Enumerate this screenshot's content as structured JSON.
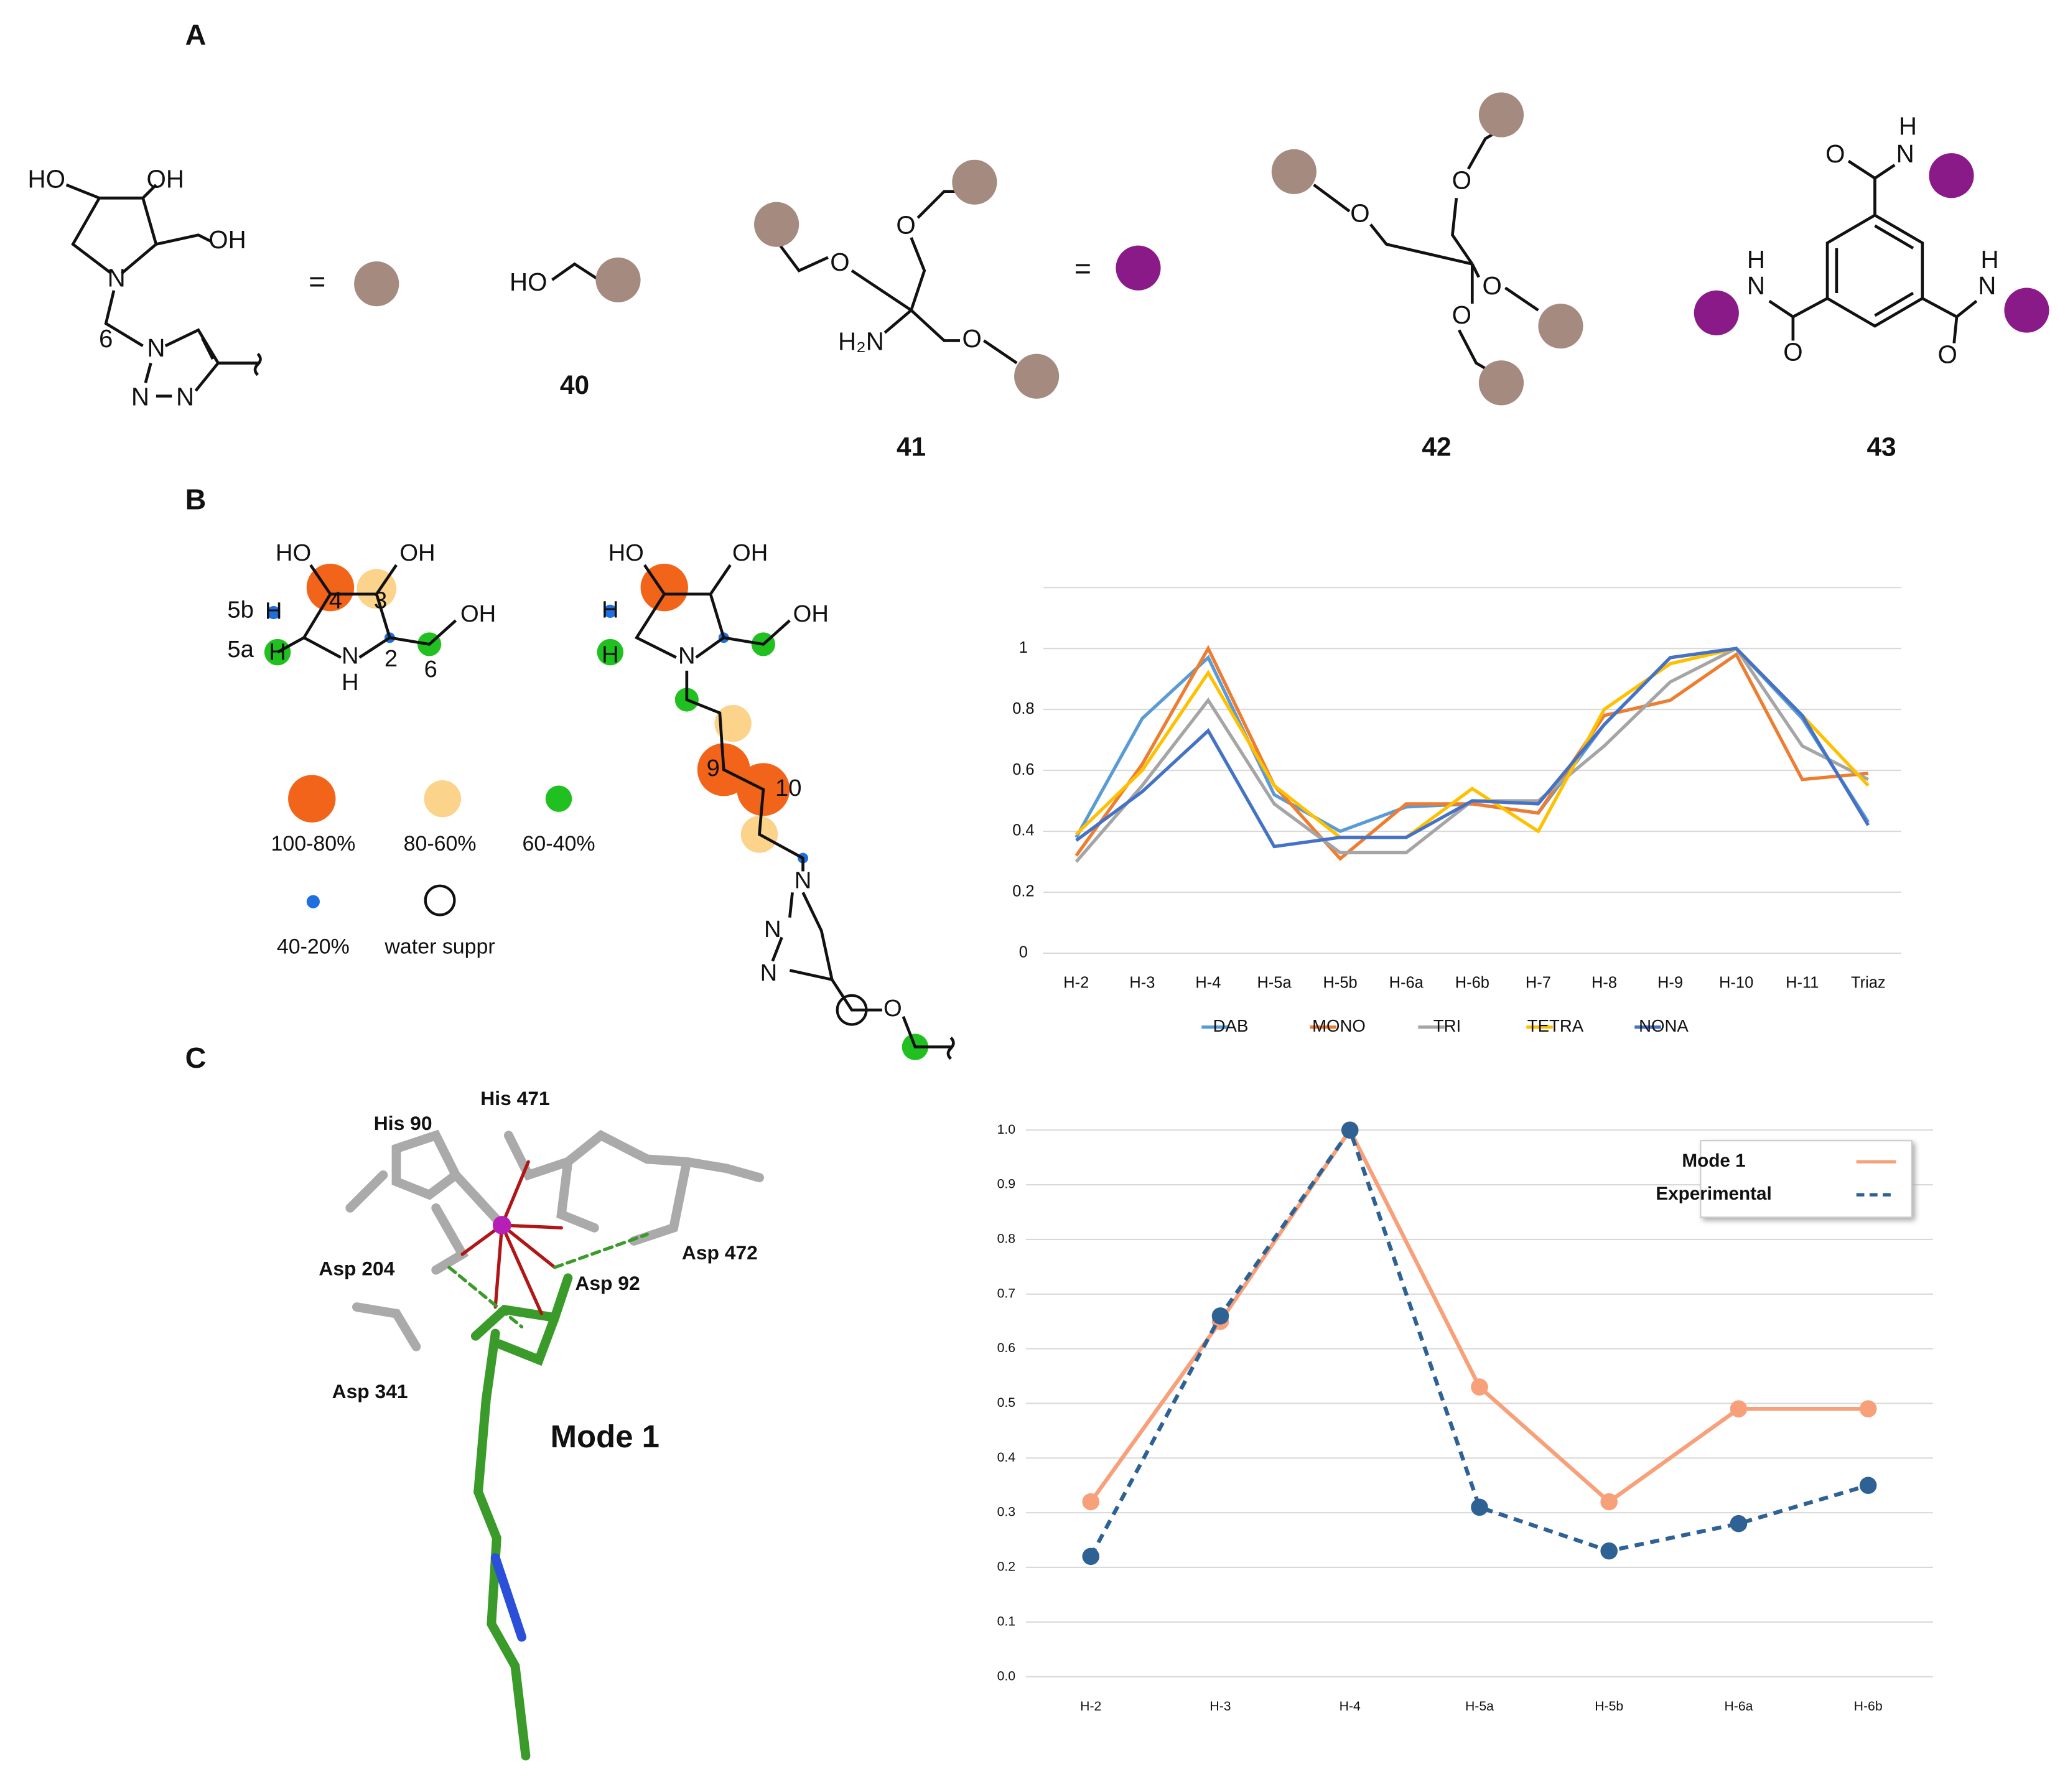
{
  "figure": {
    "panel_labels": [
      "A",
      "B",
      "C"
    ],
    "structure_a": {
      "atoms": [
        "HO",
        "OH",
        "OH",
        "N",
        "6",
        "N",
        "N",
        "N",
        "HO",
        "O",
        "O",
        "O",
        "H₂N",
        "O",
        "O",
        "O",
        "O",
        "O",
        "N",
        "H",
        "N",
        "H",
        "O",
        "N",
        "H",
        "O"
      ],
      "equals": [
        "=",
        "="
      ],
      "compounds": [
        "40",
        "41",
        "42",
        "43"
      ]
    },
    "structure_b": {
      "atoms": [
        "HO",
        "OH",
        "OH",
        "5b",
        "5a",
        "N",
        "H",
        "4",
        "3",
        "2",
        "6",
        "H",
        "H",
        "HO",
        "OH",
        "OH",
        "N",
        "H",
        "H",
        "9",
        "10",
        "N",
        "N",
        "N",
        "O"
      ],
      "legend": [
        "100-80%",
        "80-60%",
        "60-40%",
        "40-20%",
        "water suppr"
      ]
    },
    "structure_c": {
      "residues": [
        "His 90",
        "His 471",
        "Asp 204",
        "Asp 92",
        "Asp 472",
        "Asp 341"
      ],
      "mode": "Mode 1"
    }
  },
  "chart_data": [
    {
      "type": "line",
      "categories": [
        "H-2",
        "H-3",
        "H-4",
        "H-5a",
        "H-5b",
        "H-6a",
        "H-6b",
        "H-7",
        "H-8",
        "H-9",
        "H-10",
        "H-11",
        "Triaz"
      ],
      "ylim": [
        0,
        1.2
      ],
      "yticks": [
        0,
        0.2,
        0.4,
        0.6,
        0.8,
        1
      ],
      "grid": true,
      "legend": "bottom",
      "markers": false,
      "series": [
        {
          "name": "DAB",
          "color": "#5b9bd5",
          "values": [
            0.38,
            0.77,
            0.97,
            0.52,
            0.4,
            0.48,
            0.49,
            0.46,
            0.75,
            0.97,
            1.0,
            0.77,
            0.43
          ]
        },
        {
          "name": "MONO",
          "color": "#ed7d31",
          "values": [
            0.32,
            0.62,
            1.0,
            0.55,
            0.31,
            0.49,
            0.49,
            0.46,
            0.78,
            0.83,
            0.98,
            0.57,
            0.59
          ]
        },
        {
          "name": "TRI",
          "color": "#a5a5a5",
          "values": [
            0.3,
            0.55,
            0.83,
            0.49,
            0.33,
            0.33,
            0.5,
            0.5,
            0.68,
            0.89,
            1.0,
            0.68,
            0.57
          ]
        },
        {
          "name": "TETRA",
          "color": "#ffc000",
          "values": [
            0.39,
            0.6,
            0.92,
            0.55,
            0.38,
            0.38,
            0.54,
            0.4,
            0.8,
            0.95,
            1.0,
            0.78,
            0.55
          ]
        },
        {
          "name": "NONA",
          "color": "#4472c4",
          "values": [
            0.37,
            0.53,
            0.73,
            0.35,
            0.38,
            0.38,
            0.5,
            0.49,
            0.75,
            0.97,
            1.0,
            0.78,
            0.42
          ]
        }
      ]
    },
    {
      "type": "line",
      "categories": [
        "H-2",
        "H-3",
        "H-4",
        "H-5a",
        "H-5b",
        "H-6a",
        "H-6b"
      ],
      "ylim": [
        0,
        1
      ],
      "yticks": [
        {
          "value": 0,
          "label": "0.0"
        },
        0.1,
        0.2,
        0.3,
        0.4,
        0.5,
        0.6,
        0.7,
        0.8,
        0.9,
        {
          "value": 1,
          "label": "1.0"
        }
      ],
      "grid": true,
      "legend": "top-right",
      "markers": true,
      "series": [
        {
          "name": "Mode 1",
          "color": "#f7a07a",
          "line_style": "solid",
          "values": [
            0.32,
            0.65,
            1.0,
            0.53,
            0.32,
            0.49,
            0.49
          ]
        },
        {
          "name": "Experimental",
          "color": "#2e6294",
          "line_style": "dashed",
          "values": [
            0.22,
            0.66,
            1.0,
            0.31,
            0.23,
            0.28,
            0.35
          ]
        }
      ]
    }
  ]
}
